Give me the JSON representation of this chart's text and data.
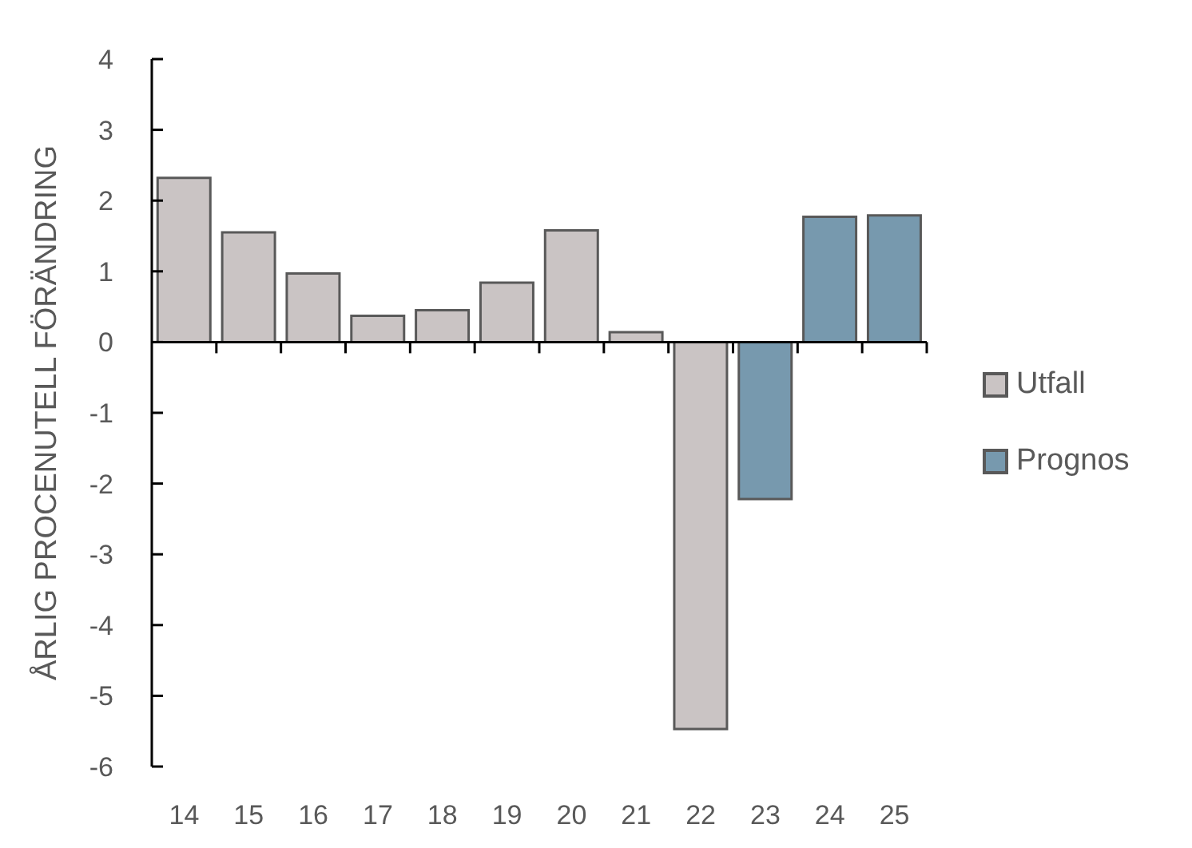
{
  "chart_data": {
    "type": "bar",
    "ylabel": "ÅRLIG PROCENUTELL FÖRÄNDRING",
    "categories": [
      "14",
      "15",
      "16",
      "17",
      "18",
      "19",
      "20",
      "21",
      "22",
      "23",
      "24",
      "25"
    ],
    "series": [
      {
        "name": "Utfall",
        "color": "#cac4c4",
        "values": [
          2.32,
          1.55,
          0.97,
          0.37,
          0.45,
          0.84,
          1.58,
          0.14,
          -5.47,
          null,
          null,
          null
        ]
      },
      {
        "name": "Prognos",
        "color": "#7799ae",
        "values": [
          null,
          null,
          null,
          null,
          null,
          null,
          null,
          null,
          null,
          -2.22,
          1.77,
          1.79
        ]
      }
    ],
    "ylim": [
      -6,
      4
    ],
    "yticks": [
      -6,
      -5,
      -4,
      -3,
      -2,
      -1,
      0,
      1,
      2,
      3,
      4
    ],
    "legend": "right"
  }
}
